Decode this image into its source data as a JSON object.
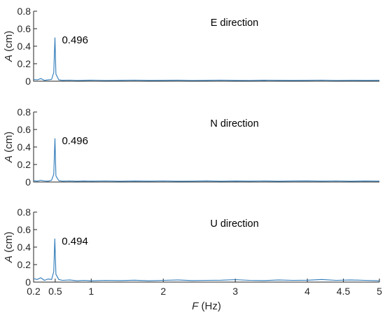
{
  "chart_data": [
    {
      "type": "line",
      "title": "E direction",
      "ylabel": "A (cm)",
      "xlabel": "",
      "xlim": [
        0.2,
        5
      ],
      "ylim": [
        0,
        0.8
      ],
      "yticks": [
        "0",
        "0.2",
        "0.4",
        "0.6",
        "0.8"
      ],
      "peak": {
        "x": 0.496,
        "y": 0.496,
        "label": "0.496"
      },
      "series": [
        {
          "x": [
            0.2,
            0.25,
            0.3,
            0.35,
            0.4,
            0.45,
            0.48,
            0.496,
            0.51,
            0.55,
            0.6,
            0.7,
            0.8,
            0.9,
            1.0,
            1.2,
            1.4,
            1.6,
            1.8,
            2.0,
            2.2,
            2.4,
            2.6,
            2.8,
            3.0,
            3.2,
            3.4,
            3.6,
            3.8,
            4.0,
            4.2,
            4.4,
            4.6,
            4.8,
            5.0
          ],
          "y": [
            0.02,
            0.015,
            0.03,
            0.01,
            0.015,
            0.02,
            0.1,
            0.496,
            0.08,
            0.015,
            0.01,
            0.012,
            0.008,
            0.01,
            0.012,
            0.008,
            0.01,
            0.012,
            0.009,
            0.01,
            0.011,
            0.008,
            0.01,
            0.012,
            0.009,
            0.008,
            0.011,
            0.01,
            0.009,
            0.01,
            0.012,
            0.008,
            0.01,
            0.009,
            0.01
          ]
        }
      ]
    },
    {
      "type": "line",
      "title": "N direction",
      "ylabel": "A (cm)",
      "xlabel": "",
      "xlim": [
        0.2,
        5
      ],
      "ylim": [
        0,
        0.8
      ],
      "yticks": [
        "0",
        "0.2",
        "0.4",
        "0.6",
        "0.8"
      ],
      "peak": {
        "x": 0.496,
        "y": 0.496,
        "label": "0.496"
      },
      "series": [
        {
          "x": [
            0.2,
            0.25,
            0.3,
            0.35,
            0.4,
            0.45,
            0.48,
            0.496,
            0.51,
            0.55,
            0.6,
            0.7,
            0.8,
            0.9,
            1.0,
            1.2,
            1.4,
            1.6,
            1.8,
            2.0,
            2.2,
            2.4,
            2.6,
            2.8,
            3.0,
            3.2,
            3.4,
            3.6,
            3.8,
            4.0,
            4.2,
            4.4,
            4.6,
            4.8,
            5.0
          ],
          "y": [
            0.015,
            0.01,
            0.02,
            0.012,
            0.01,
            0.02,
            0.09,
            0.496,
            0.07,
            0.015,
            0.01,
            0.012,
            0.009,
            0.011,
            0.01,
            0.012,
            0.009,
            0.011,
            0.01,
            0.012,
            0.009,
            0.01,
            0.013,
            0.009,
            0.011,
            0.01,
            0.012,
            0.009,
            0.011,
            0.013,
            0.01,
            0.012,
            0.009,
            0.011,
            0.01
          ]
        }
      ]
    },
    {
      "type": "line",
      "title": "U direction",
      "ylabel": "A (cm)",
      "xlabel": "F (Hz)",
      "xlim": [
        0.2,
        5
      ],
      "ylim": [
        0,
        0.8
      ],
      "yticks": [
        "0",
        "0.2",
        "0.4",
        "0.6",
        "0.8"
      ],
      "xticks": [
        "0.2",
        "0.5",
        "1",
        "2",
        "3",
        "4",
        "4.5",
        "5"
      ],
      "peak": {
        "x": 0.494,
        "y": 0.494,
        "label": "0.494"
      },
      "series": [
        {
          "x": [
            0.2,
            0.25,
            0.3,
            0.35,
            0.4,
            0.45,
            0.48,
            0.494,
            0.51,
            0.55,
            0.6,
            0.7,
            0.8,
            0.9,
            1.0,
            1.2,
            1.4,
            1.6,
            1.8,
            2.0,
            2.2,
            2.4,
            2.6,
            2.8,
            3.0,
            3.2,
            3.4,
            3.6,
            3.8,
            4.0,
            4.2,
            4.4,
            4.6,
            4.8,
            5.0
          ],
          "y": [
            0.04,
            0.03,
            0.05,
            0.02,
            0.035,
            0.03,
            0.12,
            0.494,
            0.09,
            0.03,
            0.02,
            0.025,
            0.015,
            0.02,
            0.015,
            0.02,
            0.018,
            0.022,
            0.015,
            0.02,
            0.025,
            0.018,
            0.02,
            0.022,
            0.028,
            0.02,
            0.018,
            0.025,
            0.02,
            0.022,
            0.03,
            0.02,
            0.025,
            0.02,
            0.015
          ]
        }
      ]
    }
  ],
  "colors": {
    "series": "#2e7ab8",
    "axis": "#262626"
  }
}
